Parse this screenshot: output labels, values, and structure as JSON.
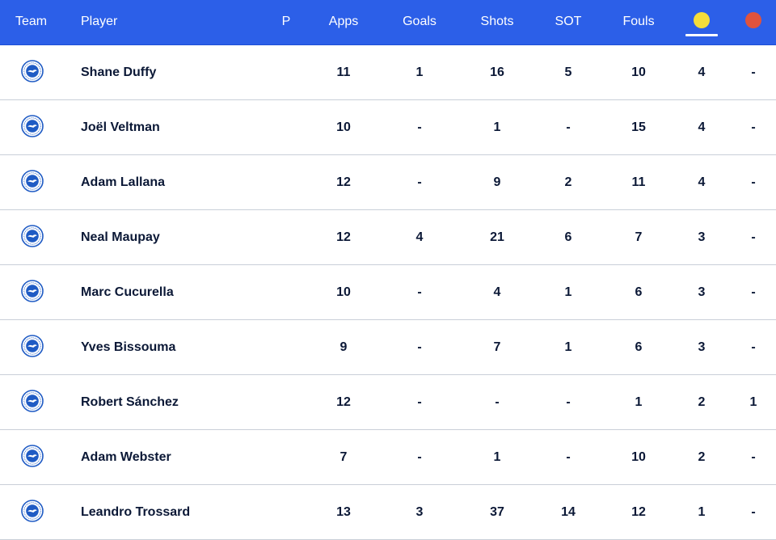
{
  "header": {
    "team": "Team",
    "player": "Player",
    "p": "P",
    "apps": "Apps",
    "goals": "Goals",
    "shots": "Shots",
    "sot": "SOT",
    "fouls": "Fouls",
    "yellow_icon": "yellow-card-icon",
    "red_icon": "red-card-icon"
  },
  "colors": {
    "header_bg": "#2c5fe8",
    "yellow_card": "#f5dd3a",
    "red_card": "#e0533d",
    "crest_blue": "#1f5bc4",
    "text": "#0b1836"
  },
  "crest_icon": "brighton-crest-icon",
  "rows": [
    {
      "player": "Shane Duffy",
      "apps": "11",
      "goals": "1",
      "shots": "16",
      "sot": "5",
      "fouls": "10",
      "yellow": "4",
      "red": "-"
    },
    {
      "player": "Joël Veltman",
      "apps": "10",
      "goals": "-",
      "shots": "1",
      "sot": "-",
      "fouls": "15",
      "yellow": "4",
      "red": "-"
    },
    {
      "player": "Adam Lallana",
      "apps": "12",
      "goals": "-",
      "shots": "9",
      "sot": "2",
      "fouls": "11",
      "yellow": "4",
      "red": "-"
    },
    {
      "player": "Neal Maupay",
      "apps": "12",
      "goals": "4",
      "shots": "21",
      "sot": "6",
      "fouls": "7",
      "yellow": "3",
      "red": "-"
    },
    {
      "player": "Marc Cucurella",
      "apps": "10",
      "goals": "-",
      "shots": "4",
      "sot": "1",
      "fouls": "6",
      "yellow": "3",
      "red": "-"
    },
    {
      "player": "Yves Bissouma",
      "apps": "9",
      "goals": "-",
      "shots": "7",
      "sot": "1",
      "fouls": "6",
      "yellow": "3",
      "red": "-"
    },
    {
      "player": "Robert Sánchez",
      "apps": "12",
      "goals": "-",
      "shots": "-",
      "sot": "-",
      "fouls": "1",
      "yellow": "2",
      "red": "1"
    },
    {
      "player": "Adam Webster",
      "apps": "7",
      "goals": "-",
      "shots": "1",
      "sot": "-",
      "fouls": "10",
      "yellow": "2",
      "red": "-"
    },
    {
      "player": "Leandro Trossard",
      "apps": "13",
      "goals": "3",
      "shots": "37",
      "sot": "14",
      "fouls": "12",
      "yellow": "1",
      "red": "-"
    }
  ]
}
